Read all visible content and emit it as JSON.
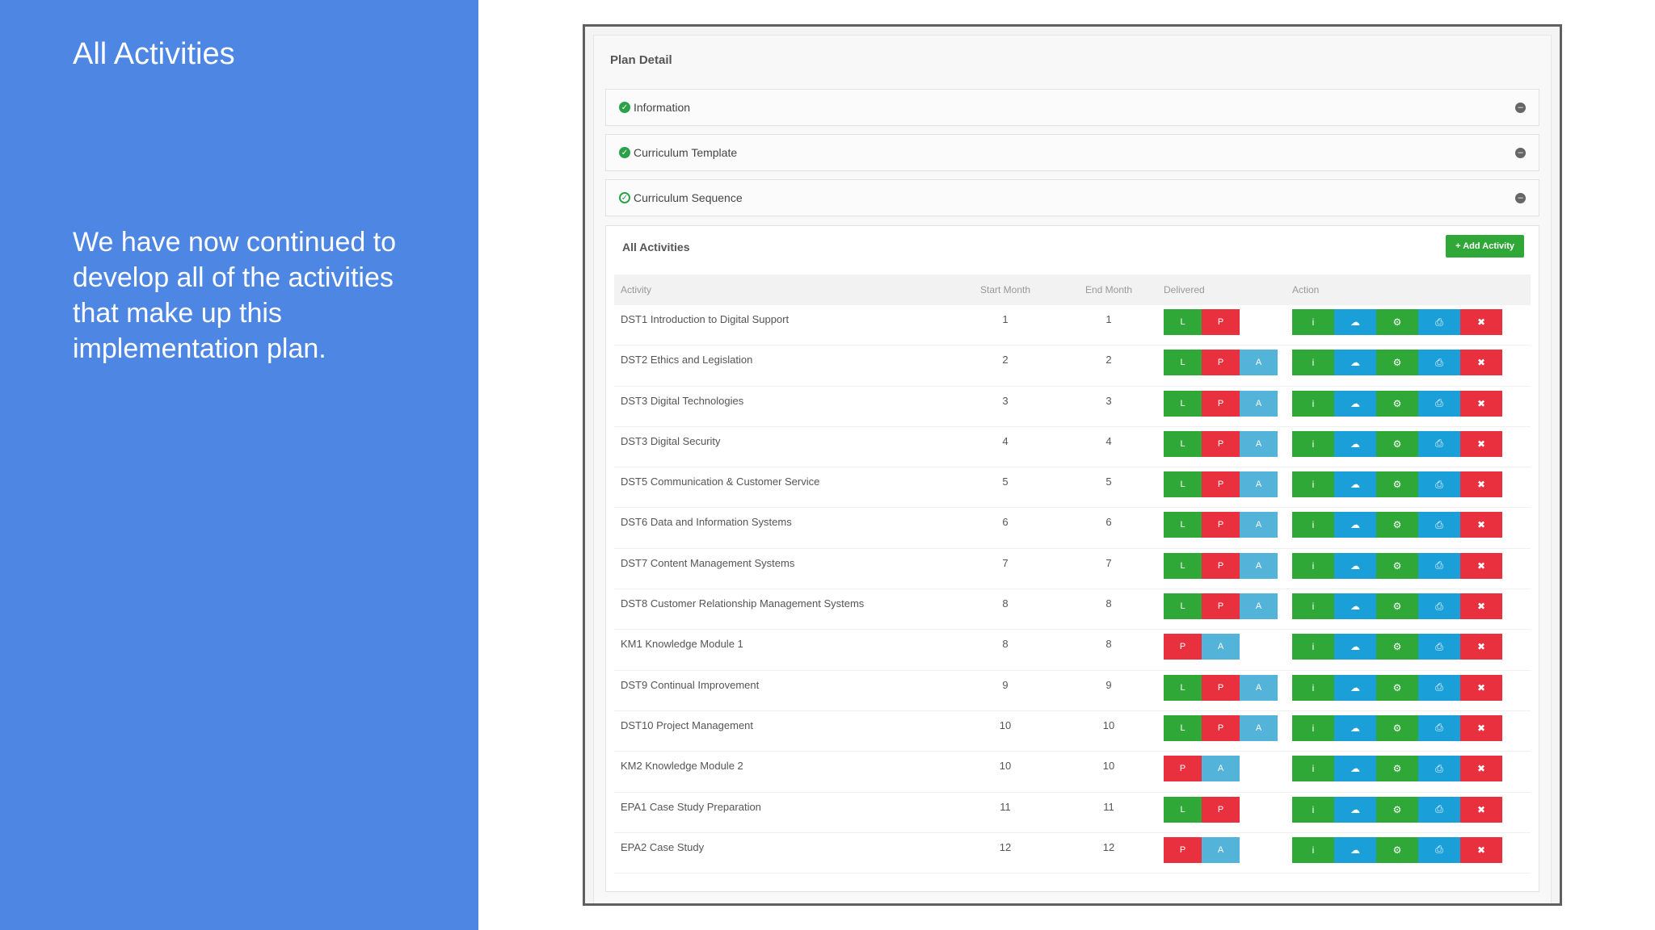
{
  "slide": {
    "title": "All Activities",
    "body": "We have now continued to develop all of the activities that make up this implementation plan."
  },
  "app": {
    "plan_title": "Plan Detail",
    "panels": [
      {
        "label": "Information"
      },
      {
        "label": "Curriculum Template"
      },
      {
        "label": "Curriculum Sequence"
      }
    ],
    "activities": {
      "heading": "All Activities",
      "add_button": "+ Add Activity",
      "columns": {
        "activity": "Activity",
        "start": "Start Month",
        "end": "End Month",
        "delivered": "Delivered",
        "action": "Action"
      },
      "rows": [
        {
          "activity": "DST1 Introduction to Digital Support",
          "start": "1",
          "end": "1",
          "delivered": [
            "L",
            "P"
          ]
        },
        {
          "activity": "DST2 Ethics and Legislation",
          "start": "2",
          "end": "2",
          "delivered": [
            "L",
            "P",
            "A"
          ]
        },
        {
          "activity": "DST3 Digital Technologies",
          "start": "3",
          "end": "3",
          "delivered": [
            "L",
            "P",
            "A"
          ]
        },
        {
          "activity": "DST3 Digital Security",
          "start": "4",
          "end": "4",
          "delivered": [
            "L",
            "P",
            "A"
          ]
        },
        {
          "activity": "DST5 Communication & Customer Service",
          "start": "5",
          "end": "5",
          "delivered": [
            "L",
            "P",
            "A"
          ]
        },
        {
          "activity": "DST6 Data and Information Systems",
          "start": "6",
          "end": "6",
          "delivered": [
            "L",
            "P",
            "A"
          ]
        },
        {
          "activity": "DST7 Content Management Systems",
          "start": "7",
          "end": "7",
          "delivered": [
            "L",
            "P",
            "A"
          ]
        },
        {
          "activity": "DST8 Customer Relationship Management Systems",
          "start": "8",
          "end": "8",
          "delivered": [
            "L",
            "P",
            "A"
          ]
        },
        {
          "activity": "KM1 Knowledge Module 1",
          "start": "8",
          "end": "8",
          "delivered": [
            "P",
            "A"
          ]
        },
        {
          "activity": "DST9 Continual Improvement",
          "start": "9",
          "end": "9",
          "delivered": [
            "L",
            "P",
            "A"
          ]
        },
        {
          "activity": "DST10 Project Management",
          "start": "10",
          "end": "10",
          "delivered": [
            "L",
            "P",
            "A"
          ]
        },
        {
          "activity": "KM2 Knowledge Module 2",
          "start": "10",
          "end": "10",
          "delivered": [
            "P",
            "A"
          ]
        },
        {
          "activity": "EPA1 Case Study Preparation",
          "start": "11",
          "end": "11",
          "delivered": [
            "L",
            "P"
          ]
        },
        {
          "activity": "EPA2 Case Study",
          "start": "12",
          "end": "12",
          "delivered": [
            "P",
            "A"
          ]
        }
      ],
      "action_icons": [
        {
          "name": "info-icon",
          "glyph": "i",
          "style": "info"
        },
        {
          "name": "upload-icon",
          "glyph": "☁",
          "style": "upload"
        },
        {
          "name": "gear-icon",
          "glyph": "⚙",
          "style": "gear"
        },
        {
          "name": "print-icon",
          "glyph": "⎙",
          "style": "print"
        },
        {
          "name": "delete-icon",
          "glyph": "✖",
          "style": "del"
        }
      ]
    }
  },
  "colors": {
    "slide_blue": "#4e86e4",
    "green": "#2fa838",
    "red": "#e8303f",
    "light_blue": "#54b3d9",
    "blue": "#1a9fd9"
  }
}
